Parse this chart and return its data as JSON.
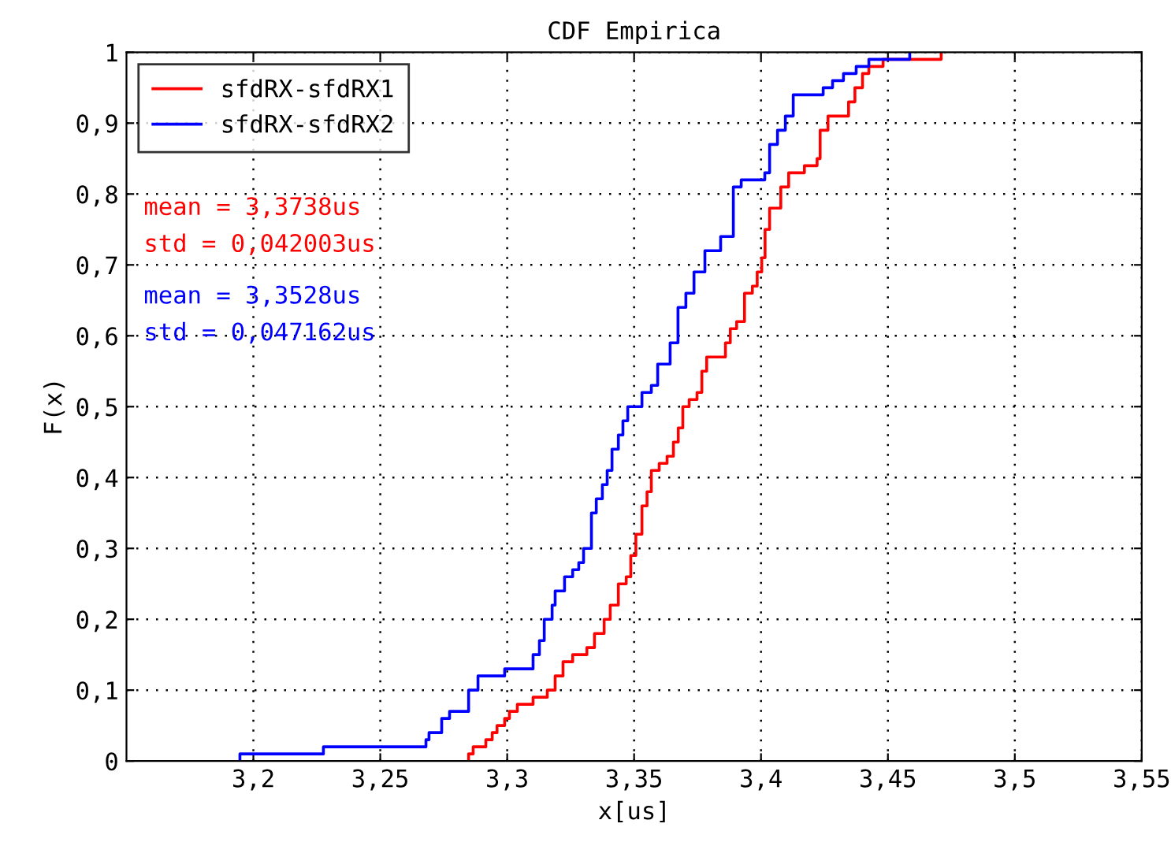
{
  "chart_data": {
    "type": "step",
    "title": "CDF Empirica",
    "xlabel": "x[us]",
    "ylabel": "F(x)",
    "xlim": [
      3.15,
      3.55
    ],
    "xticks": [
      {
        "value": 3.2,
        "label": "3,2"
      },
      {
        "value": 3.25,
        "label": "3,25"
      },
      {
        "value": 3.3,
        "label": "3,3"
      },
      {
        "value": 3.35,
        "label": "3,35"
      },
      {
        "value": 3.4,
        "label": "3,4"
      },
      {
        "value": 3.45,
        "label": "3,45"
      },
      {
        "value": 3.5,
        "label": "3,5"
      },
      {
        "value": 3.55,
        "label": "3,55"
      }
    ],
    "ylim": [
      0,
      1
    ],
    "yticks": [
      0,
      {
        "value": 0.1,
        "label": "0,1"
      },
      {
        "value": 0.2,
        "label": "0,2"
      },
      {
        "value": 0.3,
        "label": "0,3"
      },
      {
        "value": 0.4,
        "label": "0,4"
      },
      {
        "value": 0.5,
        "label": "0,5"
      },
      {
        "value": 0.6,
        "label": "0,6"
      },
      {
        "value": 0.7,
        "label": "0,7"
      },
      {
        "value": 0.8,
        "label": "0,8"
      },
      {
        "value": 0.9,
        "label": "0,9"
      },
      1
    ],
    "grid": true,
    "legend": "top left",
    "line_style": "solid",
    "marker": "none",
    "series": [
      {
        "name": "sfdRX-sfdRX1",
        "color": "#ff0000",
        "x": [
          3.2848,
          3.2848,
          3.2866,
          3.2916,
          3.2941,
          3.296,
          3.299,
          3.3009,
          3.304,
          3.3102,
          3.3158,
          3.3189,
          3.322,
          3.3258,
          3.3314,
          3.3344,
          3.3382,
          3.3406,
          3.3438,
          3.3469,
          3.3487,
          3.3507,
          3.3531,
          3.3551,
          3.3568,
          3.3599,
          3.363,
          3.3655,
          3.3674,
          3.3692,
          3.3717,
          3.3748,
          3.3767,
          3.3786,
          3.386,
          3.3879,
          3.3904,
          3.3935,
          3.3966,
          3.3985,
          3.4003,
          3.4016,
          3.4034,
          3.4078,
          3.4109,
          3.4171,
          3.4221,
          3.4233,
          3.4264,
          3.4345,
          3.437,
          3.44,
          3.4425,
          3.4481,
          3.471
        ],
        "values": [
          0,
          0.01,
          0.02,
          0.03,
          0.04,
          0.05,
          0.06,
          0.07,
          0.08,
          0.09,
          0.1,
          0.12,
          0.14,
          0.15,
          0.16,
          0.18,
          0.2,
          0.22,
          0.25,
          0.26,
          0.29,
          0.32,
          0.36,
          0.38,
          0.41,
          0.42,
          0.43,
          0.45,
          0.47,
          0.5,
          0.51,
          0.52,
          0.55,
          0.57,
          0.59,
          0.61,
          0.62,
          0.66,
          0.67,
          0.69,
          0.71,
          0.75,
          0.78,
          0.81,
          0.83,
          0.84,
          0.85,
          0.89,
          0.91,
          0.93,
          0.95,
          0.97,
          0.98,
          0.99,
          1
        ]
      },
      {
        "name": "sfdRX-sfdRX2",
        "color": "#0000ff",
        "x": [
          3.1947,
          3.1947,
          3.2276,
          3.268,
          3.2692,
          3.2742,
          3.2773,
          3.2848,
          3.2885,
          3.299,
          3.3102,
          3.3127,
          3.3146,
          3.3177,
          3.3189,
          3.3226,
          3.3258,
          3.3282,
          3.3301,
          3.3332,
          3.3351,
          3.3375,
          3.3394,
          3.3413,
          3.3438,
          3.3456,
          3.3475,
          3.3531,
          3.3568,
          3.3593,
          3.3642,
          3.3673,
          3.3704,
          3.3736,
          3.3779,
          3.3841,
          3.3891,
          3.3922,
          3.4015,
          3.4034,
          3.4065,
          3.4096,
          3.4127,
          3.4245,
          3.4282,
          3.4325,
          3.4375,
          3.4425,
          3.4586
        ],
        "values": [
          0,
          0.01,
          0.02,
          0.03,
          0.04,
          0.06,
          0.07,
          0.1,
          0.12,
          0.13,
          0.15,
          0.17,
          0.2,
          0.22,
          0.24,
          0.26,
          0.27,
          0.28,
          0.3,
          0.35,
          0.37,
          0.39,
          0.41,
          0.44,
          0.46,
          0.48,
          0.5,
          0.52,
          0.53,
          0.56,
          0.59,
          0.64,
          0.66,
          0.69,
          0.72,
          0.74,
          0.81,
          0.82,
          0.83,
          0.87,
          0.89,
          0.91,
          0.94,
          0.95,
          0.96,
          0.97,
          0.98,
          0.99,
          1
        ]
      }
    ],
    "annotations": [
      "mean = 3,3738us",
      "std = 0,042003us",
      "mean = 3,3528us",
      "std = 0,047162us"
    ]
  }
}
